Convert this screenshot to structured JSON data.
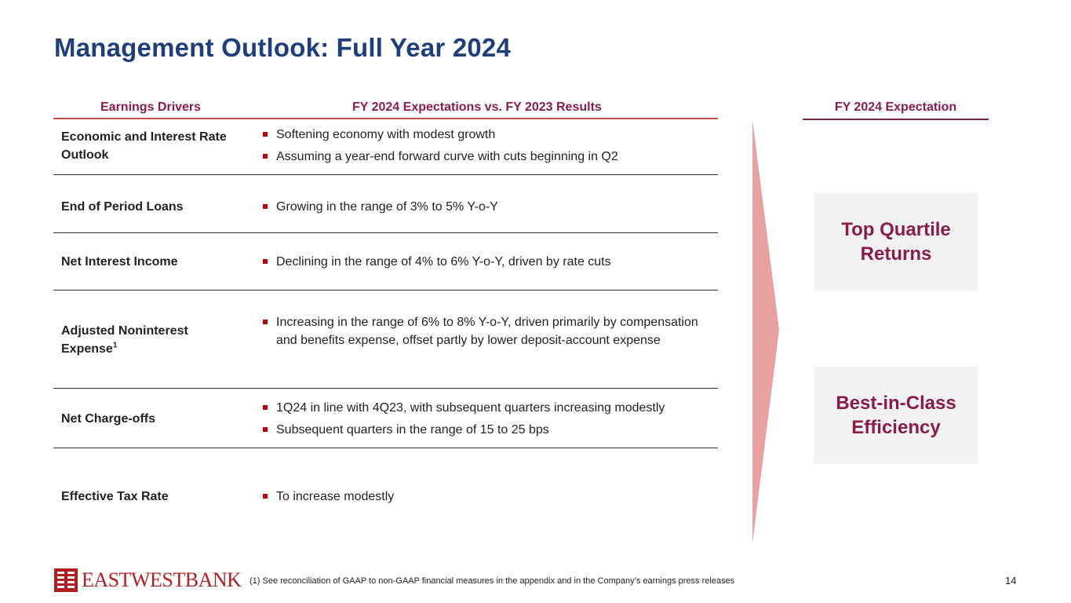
{
  "title": "Management Outlook: Full Year 2024",
  "table": {
    "headers": {
      "drivers": "Earnings Drivers",
      "expectations": "FY 2024 Expectations vs. FY 2023 Results"
    },
    "rows": [
      {
        "driver": "Economic and Interest Rate Outlook",
        "bullets": [
          "Softening economy with modest growth",
          "Assuming a year-end forward curve with cuts beginning in Q2"
        ]
      },
      {
        "driver": "End of Period Loans",
        "bullets": [
          "Growing in the range of 3% to 5% Y-o-Y"
        ]
      },
      {
        "driver": "Net Interest Income",
        "bullets": [
          "Declining in the range of 4% to 6% Y-o-Y, driven by rate cuts"
        ]
      },
      {
        "driver": "Adjusted Noninterest Expense",
        "driver_sup": "1",
        "bullets": [
          "Increasing in the range of 6% to 8% Y-o-Y, driven primarily by compensation and benefits expense, offset partly by lower deposit-account expense"
        ]
      },
      {
        "driver": "Net Charge-offs",
        "bullets": [
          "1Q24 in line with 4Q23, with subsequent quarters increasing modestly",
          "Subsequent quarters in the range of 15 to 25 bps"
        ]
      },
      {
        "driver": "Effective Tax Rate",
        "bullets": [
          "To increase modestly"
        ]
      }
    ]
  },
  "expectation": {
    "header": "FY 2024 Expectation",
    "boxes": [
      "Top Quartile Returns",
      "Best-in-Class Efficiency"
    ]
  },
  "colors": {
    "title": "#1f3f7a",
    "accent": "#8a1c4a",
    "rule": "#c0504d",
    "arrow": "#e8a0a0",
    "bullet": "#c00000",
    "brand": "#b01e23"
  },
  "footer": {
    "logo_text": "EASTWESTBANK",
    "footnote": "(1)    See reconciliation of GAAP to non-GAAP financial measures in the appendix and in the Company’s earnings press releases",
    "page_number": "14"
  }
}
